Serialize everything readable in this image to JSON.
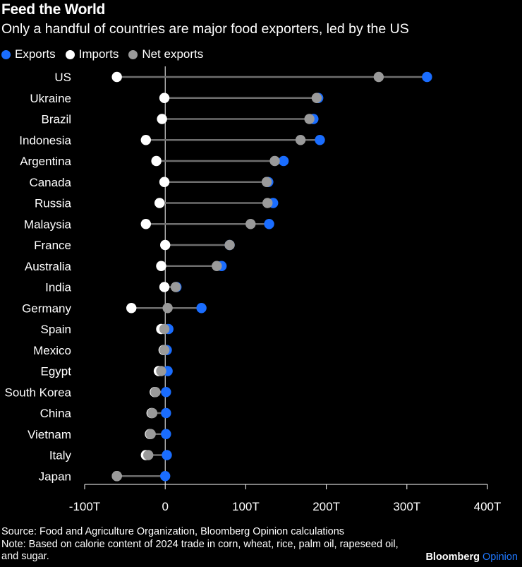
{
  "title": "Feed the World",
  "subtitle": "Only a handful of countries are major food exporters, led by the US",
  "legend": [
    {
      "label": "Exports",
      "color": "#1a6dff"
    },
    {
      "label": "Imports",
      "color": "#ffffff"
    },
    {
      "label": "Net exports",
      "color": "#9a9a9a"
    }
  ],
  "footer": {
    "source": "Source: Food and Agriculture Organization, Bloomberg Opinion calculations",
    "note": "Note: Based on calorie content of 2024 trade in corn, wheat, rice, palm oil, rapeseed oil, and sugar."
  },
  "logo": {
    "brand": "Bloomberg",
    "suffix": "Opinion"
  },
  "chart_data": {
    "type": "scatter",
    "orientation": "horizontal dumbbell",
    "xlim": [
      -100,
      400
    ],
    "x_unit": "T",
    "xticks": [
      -100,
      0,
      100,
      200,
      300,
      400
    ],
    "xtick_labels": [
      "-100T",
      "0",
      "100T",
      "200T",
      "300T",
      "400T"
    ],
    "colors": {
      "exports": "#1a6dff",
      "imports": "#ffffff",
      "net": "#9a9a9a",
      "line": "#6e6e6e",
      "axis": "#ffffff"
    },
    "categories": [
      "US",
      "Ukraine",
      "Brazil",
      "Indonesia",
      "Argentina",
      "Canada",
      "Russia",
      "Malaysia",
      "France",
      "Australia",
      "India",
      "Germany",
      "Spain",
      "Mexico",
      "Egypt",
      "South Korea",
      "China",
      "Vietnam",
      "Italy",
      "Japan"
    ],
    "series": [
      {
        "name": "Exports",
        "values": [
          325,
          190,
          184,
          192,
          147,
          128,
          134,
          129,
          80,
          70,
          14,
          45,
          4,
          2,
          3,
          1,
          1,
          1,
          2,
          0
        ]
      },
      {
        "name": "Imports",
        "values": [
          -60,
          -1,
          -4,
          -24,
          -11,
          -1,
          -7,
          -24,
          0,
          -5,
          -1,
          -42,
          -5,
          -2,
          -8,
          -13,
          -17,
          -19,
          -24,
          -60
        ]
      },
      {
        "name": "Net exports",
        "values": [
          265,
          188,
          179,
          168,
          136,
          126,
          127,
          106,
          80,
          64,
          13,
          3,
          -1,
          -1,
          -5,
          -12,
          -16,
          -18,
          -21,
          -60
        ]
      }
    ]
  }
}
